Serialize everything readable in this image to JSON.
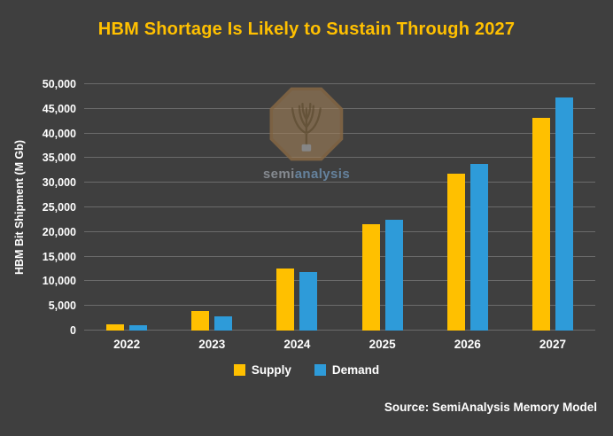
{
  "source": "Source: SemiAnalysis Memory Model",
  "watermark": {
    "semi": "semi",
    "analysis": "analysis"
  },
  "chart_data": {
    "type": "bar",
    "title": "HBM Shortage Is Likely to Sustain Through 2027",
    "title_color": "#FFC000",
    "xlabel": "",
    "ylabel": "HBM Bit Shipment (M Gb)",
    "categories": [
      "2022",
      "2023",
      "2024",
      "2025",
      "2026",
      "2027"
    ],
    "series": [
      {
        "name": "Supply",
        "color": "#FFC000",
        "values": [
          1250,
          4000,
          12600,
          21600,
          31800,
          43200
        ]
      },
      {
        "name": "Demand",
        "color": "#2E9BD9",
        "values": [
          1100,
          2900,
          11900,
          22500,
          33800,
          47300
        ]
      }
    ],
    "ylim": [
      0,
      50000
    ],
    "ytick_step": 5000,
    "yticks": [
      "0",
      "5,000",
      "10,000",
      "15,000",
      "20,000",
      "25,000",
      "30,000",
      "35,000",
      "40,000",
      "45,000",
      "50,000"
    ],
    "grid": true,
    "grid_color": "#6B6B6B",
    "text_color": "#FFFFFF",
    "background": "#3F3F3F",
    "legend_position": "bottom"
  }
}
